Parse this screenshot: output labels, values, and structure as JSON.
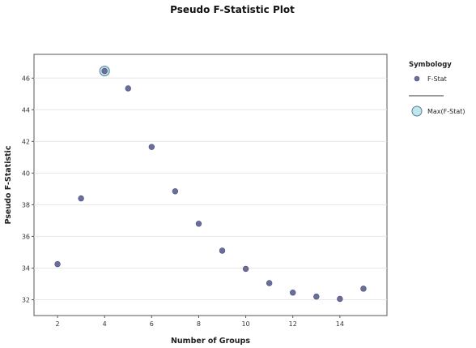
{
  "chart_data": {
    "type": "scatter",
    "title": "Pseudo F-Statistic Plot",
    "xlabel": "Number of Groups",
    "ylabel": "Pseudo F-Statistic",
    "xlim": [
      1,
      16
    ],
    "ylim": [
      31,
      47.5
    ],
    "x_ticks": [
      2,
      4,
      6,
      8,
      10,
      12,
      14
    ],
    "y_ticks": [
      32,
      34,
      36,
      38,
      40,
      42,
      44,
      46
    ],
    "grid": "horizontal",
    "legend_position": "right",
    "series": [
      {
        "name": "F-Stat",
        "color": "#6b6e9c",
        "points": [
          {
            "x": 2,
            "y": 34.25
          },
          {
            "x": 3,
            "y": 38.4
          },
          {
            "x": 4,
            "y": 46.45
          },
          {
            "x": 5,
            "y": 45.35
          },
          {
            "x": 6,
            "y": 41.65
          },
          {
            "x": 7,
            "y": 38.85
          },
          {
            "x": 8,
            "y": 36.8
          },
          {
            "x": 9,
            "y": 35.1
          },
          {
            "x": 10,
            "y": 33.95
          },
          {
            "x": 11,
            "y": 33.05
          },
          {
            "x": 12,
            "y": 32.45
          },
          {
            "x": 13,
            "y": 32.2
          },
          {
            "x": 14,
            "y": 32.05
          },
          {
            "x": 15,
            "y": 32.7
          }
        ]
      },
      {
        "name": "Max(F-Stat)",
        "color": "#bfe6ec",
        "stroke": "#5a7f93",
        "points": [
          {
            "x": 4,
            "y": 46.45
          }
        ]
      }
    ],
    "legend": {
      "title": "Symbology",
      "items": [
        "F-Stat",
        "Max(F-Stat)"
      ]
    }
  }
}
